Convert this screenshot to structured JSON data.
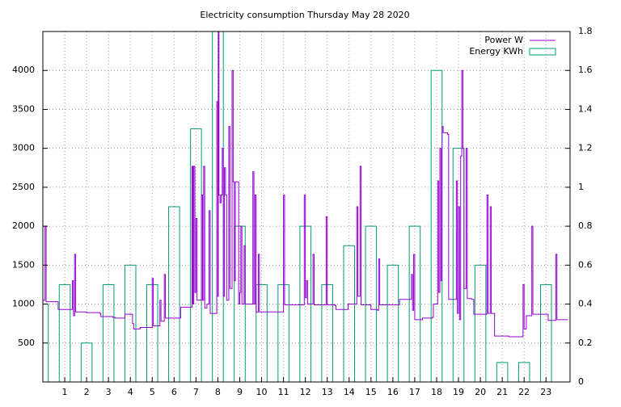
{
  "chart_data": {
    "type": "line-boxes",
    "title": "Electricity consumption Thursday May 28 2020",
    "xlim": [
      0,
      24.1
    ],
    "xticks": [
      1,
      2,
      3,
      4,
      5,
      6,
      7,
      8,
      9,
      10,
      11,
      12,
      13,
      14,
      15,
      16,
      17,
      18,
      19,
      20,
      21,
      22,
      23
    ],
    "ylim": [
      0,
      4500
    ],
    "yticks": [
      500,
      1000,
      1500,
      2000,
      2500,
      3000,
      3500,
      4000
    ],
    "y2lim": [
      0,
      1.8
    ],
    "y2ticks": [
      0,
      0.2,
      0.4,
      0.6,
      0.8,
      1,
      1.2,
      1.4,
      1.6,
      1.8
    ],
    "grid": true,
    "legend": "top-right",
    "series": [
      {
        "name": "Power W",
        "color": "#9400d3",
        "style": "steps",
        "x": [
          0,
          0.1,
          0.15,
          0.5,
          0.7,
          1.3,
          1.35,
          1.4,
          1.45,
          1.5,
          2,
          2.6,
          2.65,
          3.2,
          3.3,
          3.7,
          3.75,
          4.05,
          4.1,
          4.15,
          4.4,
          4.45,
          4.9,
          5,
          5.05,
          5.3,
          5.35,
          5.4,
          5.55,
          5.6,
          6.2,
          6.3,
          6.8,
          6.82,
          6.86,
          6.9,
          6.95,
          7,
          7.05,
          7.2,
          7.25,
          7.3,
          7.35,
          7.4,
          7.5,
          7.6,
          7.65,
          7.9,
          7.95,
          8,
          8.02,
          8.05,
          8.1,
          8.15,
          8.2,
          8.25,
          8.3,
          8.35,
          8.4,
          8.5,
          8.55,
          8.65,
          8.7,
          8.75,
          8.8,
          8.9,
          8.95,
          9,
          9.05,
          9.1,
          9.2,
          9.25,
          9.55,
          9.6,
          9.65,
          9.7,
          9.75,
          9.85,
          9.9,
          10.5,
          10.95,
          11,
          11.05,
          11.9,
          11.95,
          12,
          12.05,
          12.1,
          12.25,
          12.3,
          12.35,
          12.4,
          12.9,
          12.95,
          13,
          13.35,
          13.4,
          13.9,
          13.95,
          14.3,
          14.35,
          14.4,
          14.5,
          14.55,
          14.95,
          15,
          15.3,
          15.35,
          15.4,
          16.2,
          16.3,
          16.8,
          16.85,
          16.9,
          16.95,
          17,
          17.35,
          17.8,
          17.85,
          18,
          18.05,
          18.1,
          18.15,
          18.2,
          18.25,
          18.3,
          18.5,
          18.55,
          18.8,
          18.9,
          18.95,
          19,
          19.05,
          19.1,
          19.15,
          19.2,
          19.25,
          19.35,
          19.4,
          19.6,
          19.7,
          20.25,
          20.3,
          20.35,
          20.45,
          20.5,
          20.6,
          20.65,
          21.2,
          21.3,
          21.9,
          21.95,
          22,
          22.1,
          22.3,
          22.35,
          22.4,
          23,
          23.1,
          23.4,
          23.45,
          23.5,
          24
        ],
        "values": [
          1050,
          2000,
          1030,
          1030,
          930,
          930,
          1300,
          850,
          1640,
          900,
          890,
          880,
          840,
          830,
          820,
          820,
          870,
          870,
          750,
          680,
          680,
          700,
          700,
          1330,
          720,
          720,
          1050,
          780,
          1380,
          820,
          820,
          960,
          960,
          2770,
          1000,
          2770,
          1150,
          2100,
          1050,
          1050,
          2400,
          1050,
          2770,
          950,
          1000,
          2200,
          880,
          880,
          3600,
          1100,
          4500,
          2400,
          2300,
          2400,
          3000,
          1100,
          2750,
          2400,
          1050,
          3280,
          1200,
          4000,
          2570,
          1300,
          2570,
          2570,
          1000,
          1150,
          2000,
          1000,
          1750,
          1000,
          1000,
          2700,
          1000,
          2400,
          900,
          1640,
          900,
          900,
          900,
          2400,
          990,
          990,
          2400,
          1080,
          1300,
          1000,
          1000,
          1000,
          1640,
          990,
          990,
          2120,
          990,
          980,
          930,
          930,
          1000,
          1000,
          2250,
          1100,
          2770,
          990,
          990,
          930,
          920,
          1580,
          990,
          990,
          1060,
          1060,
          1380,
          920,
          1640,
          800,
          820,
          830,
          1000,
          1000,
          2580,
          1150,
          3000,
          1300,
          3280,
          3200,
          3180,
          1060,
          1060,
          2580,
          880,
          2250,
          800,
          2900,
          4000,
          3000,
          1200,
          3000,
          1070,
          1060,
          870,
          870,
          2400,
          880,
          2250,
          880,
          880,
          590,
          590,
          580,
          580,
          1250,
          680,
          850,
          850,
          2000,
          870,
          870,
          790,
          790,
          1640,
          800,
          800
        ]
      },
      {
        "name": "Energy KWh",
        "color": "#009e73",
        "axis": "y2",
        "style": "boxes",
        "x": [
          0,
          1,
          2,
          3,
          4,
          5,
          6,
          7,
          8,
          9,
          10,
          11,
          12,
          13,
          14,
          15,
          16,
          17,
          18,
          19,
          20,
          21,
          22,
          23
        ],
        "values": [
          0.4,
          0.5,
          0.2,
          0.5,
          0.6,
          0.5,
          0.9,
          1.3,
          1.8,
          0.8,
          0.5,
          0.5,
          0.8,
          0.5,
          0.7,
          0.8,
          0.6,
          0.8,
          1.6,
          1.2,
          0.6,
          0.1,
          0.1,
          0.5
        ]
      }
    ]
  }
}
